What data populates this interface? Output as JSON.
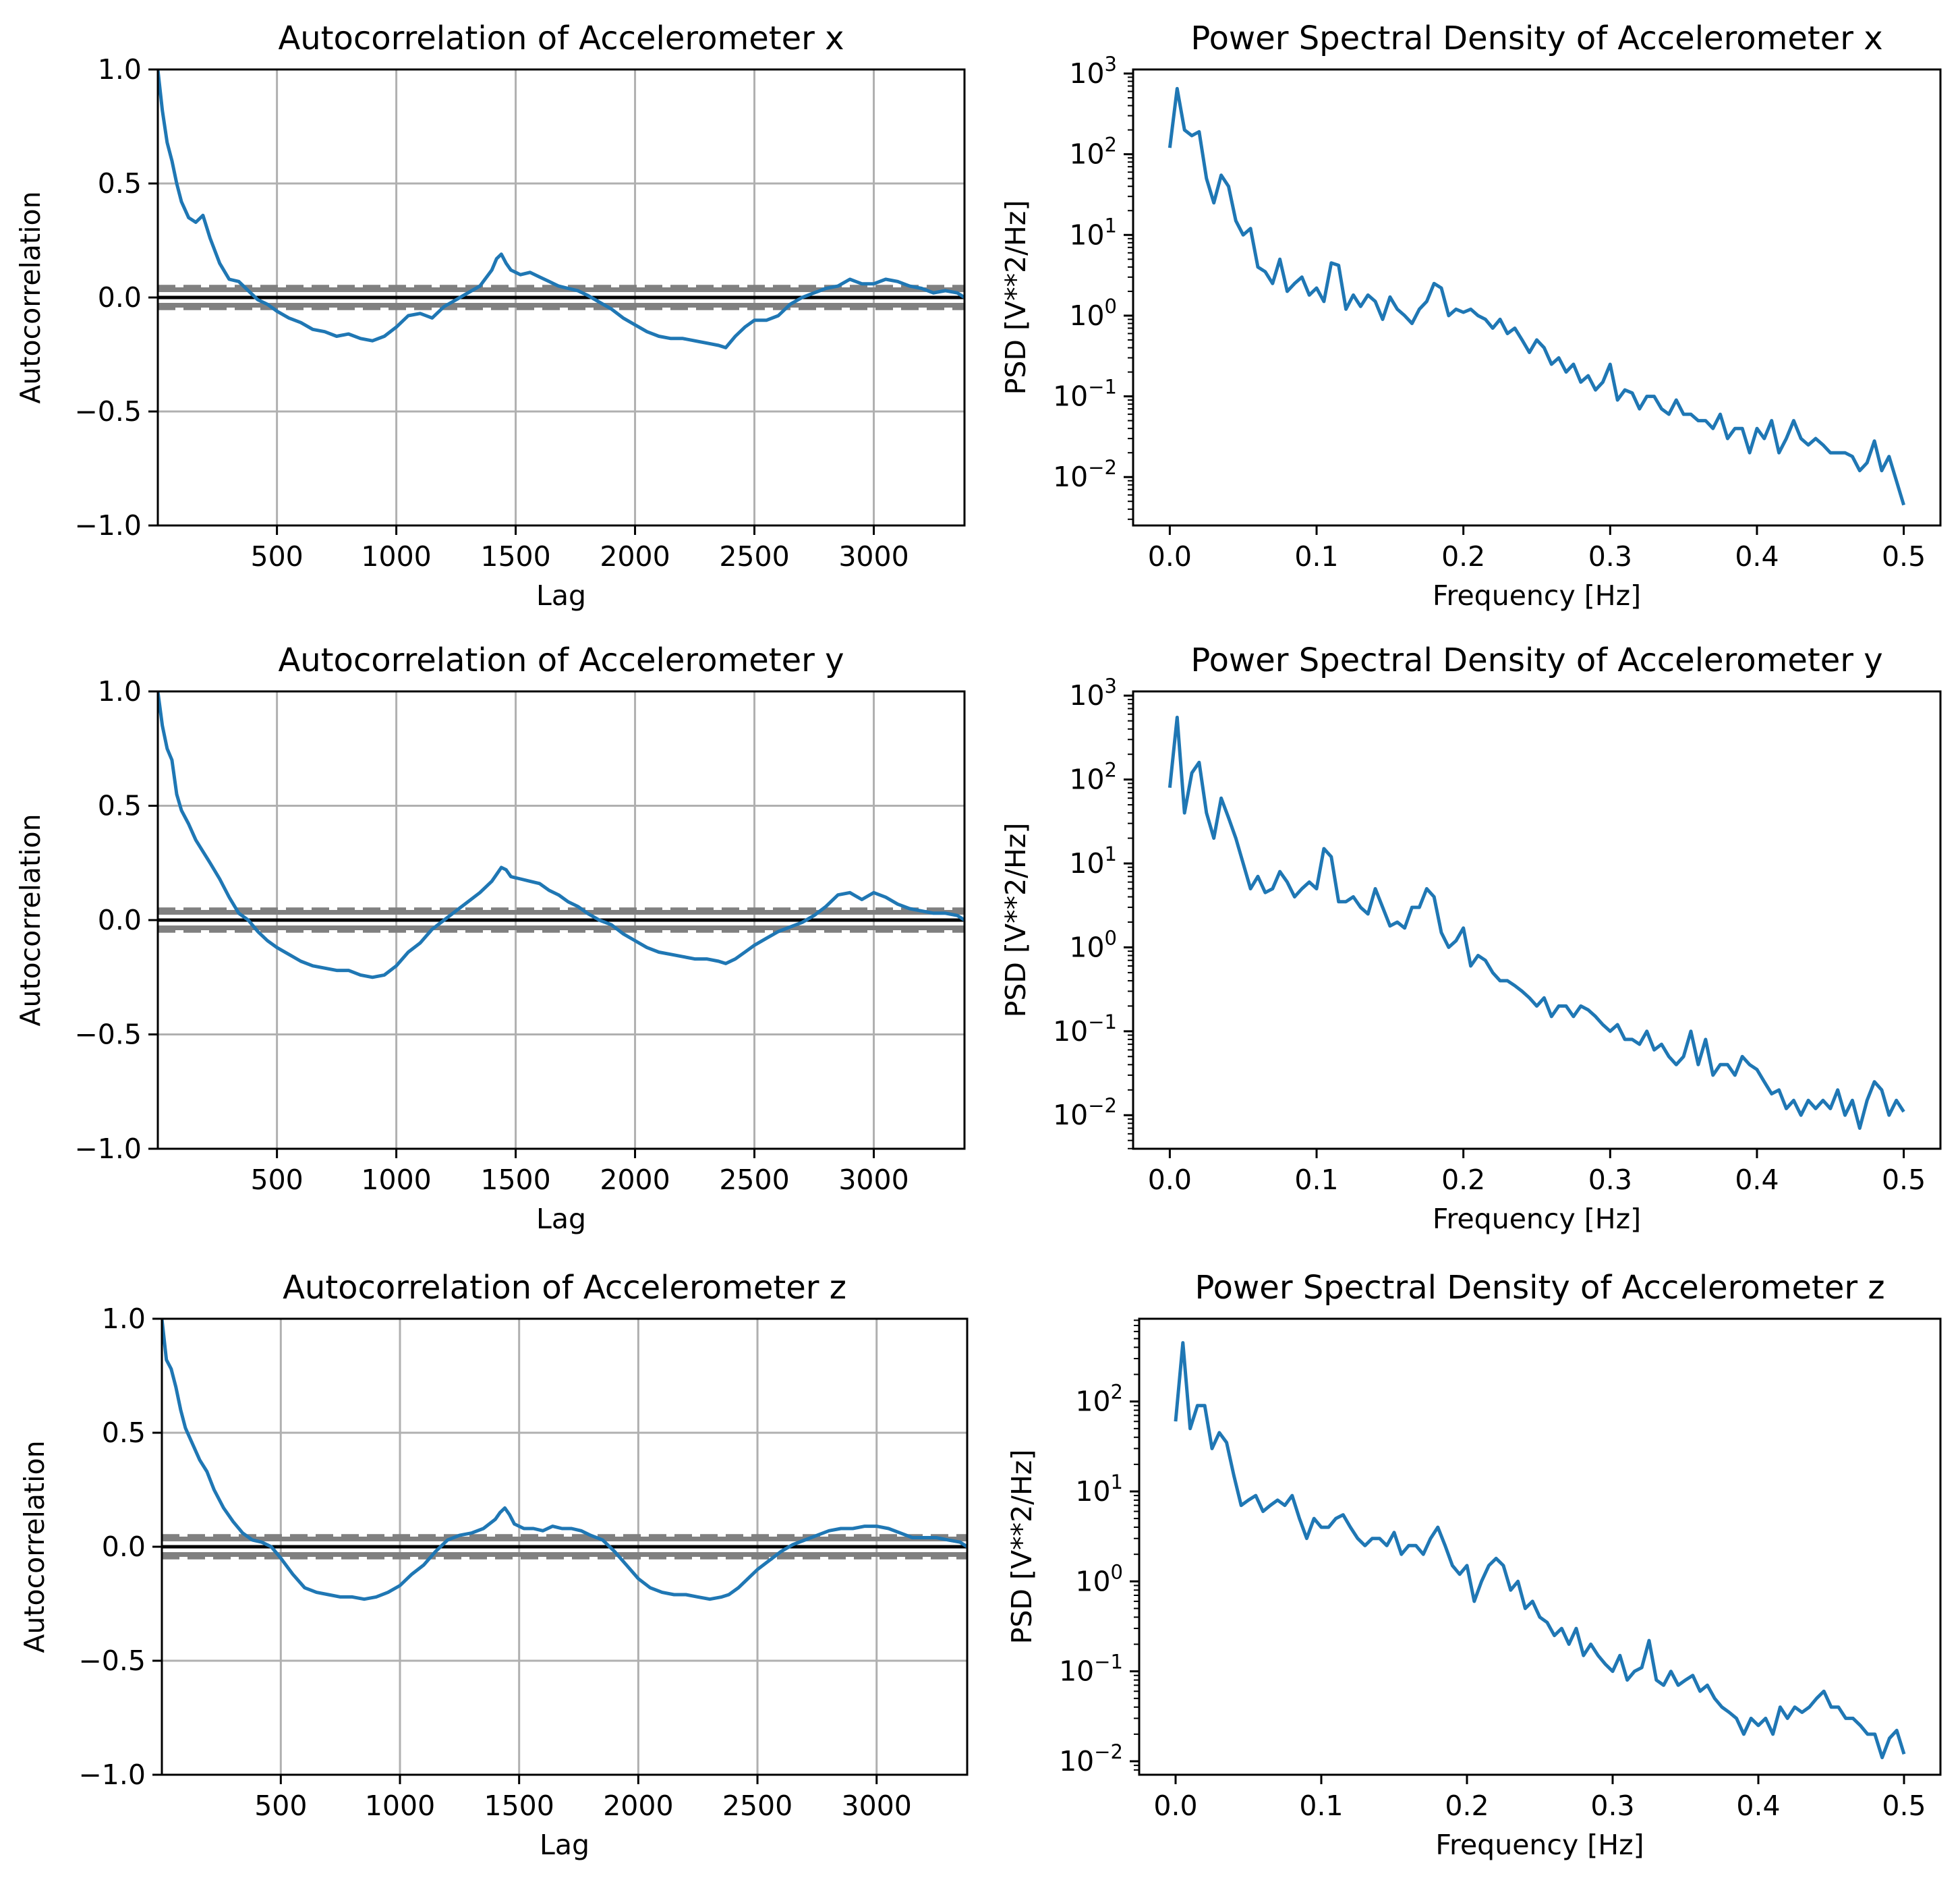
{
  "colors": {
    "line": "#1f77b4",
    "grid": "#b0b0b0",
    "band": "#808080",
    "axis": "#000000"
  },
  "chart_data": [
    {
      "type": "line",
      "panel": "acf",
      "title": "Autocorrelation of Accelerometer x",
      "xlabel": "Lag",
      "ylabel": "Autocorrelation",
      "xlim": [
        1,
        3380
      ],
      "ylim": [
        -1.0,
        1.0
      ],
      "xticks": [
        "500",
        "1000",
        "1500",
        "2000",
        "2500",
        "3000"
      ],
      "yticks": [
        "−1.0",
        "−0.5",
        "0.0",
        "0.5",
        "1.0"
      ],
      "grid": true,
      "conf_band": [
        0.034,
        0.045
      ],
      "x": [
        1,
        20,
        40,
        60,
        80,
        100,
        130,
        160,
        190,
        220,
        260,
        300,
        340,
        380,
        420,
        460,
        500,
        550,
        600,
        650,
        700,
        750,
        800,
        850,
        900,
        950,
        1000,
        1050,
        1100,
        1150,
        1200,
        1250,
        1300,
        1350,
        1400,
        1420,
        1440,
        1460,
        1480,
        1520,
        1560,
        1600,
        1640,
        1680,
        1720,
        1760,
        1800,
        1850,
        1900,
        1950,
        2000,
        2050,
        2100,
        2150,
        2200,
        2250,
        2300,
        2350,
        2380,
        2420,
        2460,
        2500,
        2550,
        2600,
        2650,
        2700,
        2750,
        2800,
        2850,
        2900,
        2950,
        3000,
        3050,
        3100,
        3150,
        3200,
        3250,
        3300,
        3350,
        3380
      ],
      "y": [
        1.0,
        0.82,
        0.68,
        0.6,
        0.5,
        0.42,
        0.35,
        0.33,
        0.36,
        0.26,
        0.15,
        0.08,
        0.07,
        0.03,
        -0.01,
        -0.03,
        -0.06,
        -0.09,
        -0.11,
        -0.14,
        -0.15,
        -0.17,
        -0.16,
        -0.18,
        -0.19,
        -0.17,
        -0.13,
        -0.08,
        -0.07,
        -0.09,
        -0.04,
        -0.01,
        0.02,
        0.05,
        0.12,
        0.17,
        0.19,
        0.15,
        0.12,
        0.1,
        0.11,
        0.09,
        0.07,
        0.05,
        0.04,
        0.03,
        0.01,
        -0.02,
        -0.05,
        -0.09,
        -0.12,
        -0.15,
        -0.17,
        -0.18,
        -0.18,
        -0.19,
        -0.2,
        -0.21,
        -0.22,
        -0.17,
        -0.13,
        -0.1,
        -0.1,
        -0.08,
        -0.03,
        0.0,
        0.02,
        0.04,
        0.05,
        0.08,
        0.06,
        0.06,
        0.08,
        0.07,
        0.05,
        0.04,
        0.02,
        0.03,
        0.02,
        0.0
      ]
    },
    {
      "type": "line",
      "panel": "psd",
      "yscale": "log",
      "title": "Power Spectral Density of Accelerometer x",
      "xlabel": "Frequency [Hz]",
      "ylabel": "PSD [V**2/Hz]",
      "xlim": [
        -0.025,
        0.525
      ],
      "ylim_log10": [
        -2.6,
        3.05
      ],
      "xticks": [
        "0.0",
        "0.1",
        "0.2",
        "0.3",
        "0.4",
        "0.5"
      ],
      "yticks": [
        -2,
        -1,
        0,
        1,
        2,
        3
      ],
      "x": [
        0.0,
        0.005,
        0.01,
        0.015,
        0.02,
        0.025,
        0.03,
        0.035,
        0.04,
        0.045,
        0.05,
        0.055,
        0.06,
        0.065,
        0.07,
        0.075,
        0.08,
        0.085,
        0.09,
        0.095,
        0.1,
        0.105,
        0.11,
        0.115,
        0.12,
        0.125,
        0.13,
        0.135,
        0.14,
        0.145,
        0.15,
        0.155,
        0.16,
        0.165,
        0.17,
        0.175,
        0.18,
        0.185,
        0.19,
        0.195,
        0.2,
        0.205,
        0.21,
        0.215,
        0.22,
        0.225,
        0.23,
        0.235,
        0.24,
        0.245,
        0.25,
        0.255,
        0.26,
        0.265,
        0.27,
        0.275,
        0.28,
        0.285,
        0.29,
        0.295,
        0.3,
        0.305,
        0.31,
        0.315,
        0.32,
        0.325,
        0.33,
        0.335,
        0.34,
        0.345,
        0.35,
        0.355,
        0.36,
        0.365,
        0.37,
        0.375,
        0.38,
        0.385,
        0.39,
        0.395,
        0.4,
        0.405,
        0.41,
        0.415,
        0.42,
        0.425,
        0.43,
        0.435,
        0.44,
        0.445,
        0.45,
        0.455,
        0.46,
        0.465,
        0.47,
        0.475,
        0.48,
        0.485,
        0.49,
        0.495,
        0.5
      ],
      "y": [
        120,
        650,
        200,
        170,
        190,
        50,
        25,
        55,
        40,
        15,
        10,
        12,
        4,
        3.5,
        2.5,
        5,
        2,
        2.5,
        3,
        1.8,
        2.2,
        1.5,
        4.5,
        4.2,
        1.2,
        1.8,
        1.3,
        1.8,
        1.5,
        0.9,
        1.7,
        1.2,
        1.0,
        0.8,
        1.2,
        1.5,
        2.5,
        2.2,
        1.0,
        1.2,
        1.1,
        1.2,
        1.0,
        0.9,
        0.7,
        0.9,
        0.6,
        0.7,
        0.5,
        0.35,
        0.5,
        0.4,
        0.25,
        0.3,
        0.2,
        0.25,
        0.15,
        0.18,
        0.12,
        0.15,
        0.25,
        0.09,
        0.12,
        0.11,
        0.07,
        0.1,
        0.1,
        0.07,
        0.06,
        0.09,
        0.06,
        0.06,
        0.05,
        0.05,
        0.04,
        0.06,
        0.03,
        0.04,
        0.04,
        0.02,
        0.04,
        0.03,
        0.05,
        0.02,
        0.03,
        0.05,
        0.03,
        0.025,
        0.03,
        0.025,
        0.02,
        0.02,
        0.02,
        0.018,
        0.012,
        0.015,
        0.028,
        0.012,
        0.018,
        0.009,
        0.0045
      ]
    },
    {
      "type": "line",
      "panel": "acf",
      "title": "Autocorrelation of Accelerometer y",
      "xlabel": "Lag",
      "ylabel": "Autocorrelation",
      "xlim": [
        1,
        3380
      ],
      "ylim": [
        -1.0,
        1.0
      ],
      "xticks": [
        "500",
        "1000",
        "1500",
        "2000",
        "2500",
        "3000"
      ],
      "yticks": [
        "−1.0",
        "−0.5",
        "0.0",
        "0.5",
        "1.0"
      ],
      "grid": true,
      "conf_band": [
        0.034,
        0.045
      ],
      "x": [
        1,
        20,
        40,
        60,
        80,
        100,
        130,
        160,
        190,
        220,
        260,
        300,
        340,
        380,
        420,
        460,
        500,
        550,
        600,
        650,
        700,
        750,
        800,
        850,
        900,
        950,
        1000,
        1050,
        1100,
        1150,
        1200,
        1250,
        1300,
        1350,
        1400,
        1420,
        1440,
        1460,
        1480,
        1520,
        1560,
        1600,
        1640,
        1680,
        1720,
        1760,
        1800,
        1850,
        1900,
        1950,
        2000,
        2050,
        2100,
        2150,
        2200,
        2250,
        2300,
        2350,
        2380,
        2420,
        2460,
        2500,
        2550,
        2600,
        2650,
        2700,
        2750,
        2800,
        2850,
        2900,
        2950,
        3000,
        3050,
        3100,
        3150,
        3200,
        3250,
        3300,
        3350,
        3380
      ],
      "y": [
        1.0,
        0.85,
        0.75,
        0.7,
        0.55,
        0.48,
        0.42,
        0.35,
        0.3,
        0.25,
        0.18,
        0.1,
        0.03,
        0.0,
        -0.05,
        -0.09,
        -0.12,
        -0.15,
        -0.18,
        -0.2,
        -0.21,
        -0.22,
        -0.22,
        -0.24,
        -0.25,
        -0.24,
        -0.2,
        -0.14,
        -0.1,
        -0.04,
        0.0,
        0.04,
        0.08,
        0.12,
        0.17,
        0.2,
        0.23,
        0.22,
        0.19,
        0.18,
        0.17,
        0.16,
        0.13,
        0.11,
        0.08,
        0.06,
        0.03,
        0.0,
        -0.02,
        -0.06,
        -0.09,
        -0.12,
        -0.14,
        -0.15,
        -0.16,
        -0.17,
        -0.17,
        -0.18,
        -0.19,
        -0.17,
        -0.14,
        -0.11,
        -0.08,
        -0.05,
        -0.03,
        -0.01,
        0.02,
        0.06,
        0.11,
        0.12,
        0.09,
        0.12,
        0.1,
        0.07,
        0.05,
        0.04,
        0.03,
        0.03,
        0.02,
        0.0
      ]
    },
    {
      "type": "line",
      "panel": "psd",
      "yscale": "log",
      "title": "Power Spectral Density of Accelerometer y",
      "xlabel": "Frequency [Hz]",
      "ylabel": "PSD [V**2/Hz]",
      "xlim": [
        -0.025,
        0.525
      ],
      "ylim_log10": [
        -2.4,
        3.05
      ],
      "xticks": [
        "0.0",
        "0.1",
        "0.2",
        "0.3",
        "0.4",
        "0.5"
      ],
      "yticks": [
        -2,
        -1,
        0,
        1,
        2,
        3
      ],
      "x": [
        0.0,
        0.005,
        0.01,
        0.015,
        0.02,
        0.025,
        0.03,
        0.035,
        0.04,
        0.045,
        0.05,
        0.055,
        0.06,
        0.065,
        0.07,
        0.075,
        0.08,
        0.085,
        0.09,
        0.095,
        0.1,
        0.105,
        0.11,
        0.115,
        0.12,
        0.125,
        0.13,
        0.135,
        0.14,
        0.145,
        0.15,
        0.155,
        0.16,
        0.165,
        0.17,
        0.175,
        0.18,
        0.185,
        0.19,
        0.195,
        0.2,
        0.205,
        0.21,
        0.215,
        0.22,
        0.225,
        0.23,
        0.235,
        0.24,
        0.245,
        0.25,
        0.255,
        0.26,
        0.265,
        0.27,
        0.275,
        0.28,
        0.285,
        0.29,
        0.295,
        0.3,
        0.305,
        0.31,
        0.315,
        0.32,
        0.325,
        0.33,
        0.335,
        0.34,
        0.345,
        0.35,
        0.355,
        0.36,
        0.365,
        0.37,
        0.375,
        0.38,
        0.385,
        0.39,
        0.395,
        0.4,
        0.405,
        0.41,
        0.415,
        0.42,
        0.425,
        0.43,
        0.435,
        0.44,
        0.445,
        0.45,
        0.455,
        0.46,
        0.465,
        0.47,
        0.475,
        0.48,
        0.485,
        0.49,
        0.495,
        0.5
      ],
      "y": [
        80,
        550,
        40,
        120,
        160,
        40,
        20,
        60,
        35,
        20,
        10,
        5,
        7,
        4.5,
        5,
        8,
        6,
        4,
        5,
        6,
        5,
        15,
        12,
        3.5,
        3.5,
        4,
        3,
        2.5,
        5,
        3,
        1.8,
        2,
        1.7,
        3,
        3,
        5,
        4,
        1.5,
        1.0,
        1.2,
        1.7,
        0.6,
        0.8,
        0.7,
        0.5,
        0.4,
        0.4,
        0.35,
        0.3,
        0.25,
        0.2,
        0.25,
        0.15,
        0.2,
        0.2,
        0.15,
        0.2,
        0.18,
        0.15,
        0.12,
        0.1,
        0.12,
        0.08,
        0.08,
        0.07,
        0.1,
        0.06,
        0.07,
        0.05,
        0.04,
        0.05,
        0.1,
        0.04,
        0.08,
        0.03,
        0.04,
        0.04,
        0.03,
        0.05,
        0.04,
        0.035,
        0.025,
        0.018,
        0.02,
        0.012,
        0.015,
        0.01,
        0.015,
        0.012,
        0.015,
        0.012,
        0.02,
        0.01,
        0.015,
        0.007,
        0.015,
        0.025,
        0.02,
        0.01,
        0.015,
        0.011
      ]
    },
    {
      "type": "line",
      "panel": "acf",
      "title": "Autocorrelation of Accelerometer z",
      "xlabel": "Lag",
      "ylabel": "Autocorrelation",
      "xlim": [
        1,
        3380
      ],
      "ylim": [
        -1.0,
        1.0
      ],
      "xticks": [
        "500",
        "1000",
        "1500",
        "2000",
        "2500",
        "3000"
      ],
      "yticks": [
        "−1.0",
        "−0.5",
        "0.0",
        "0.5",
        "1.0"
      ],
      "grid": true,
      "conf_band": [
        0.034,
        0.045
      ],
      "x": [
        1,
        20,
        40,
        60,
        80,
        100,
        130,
        160,
        190,
        220,
        260,
        300,
        340,
        380,
        420,
        460,
        500,
        550,
        600,
        650,
        700,
        750,
        800,
        850,
        900,
        950,
        1000,
        1050,
        1100,
        1150,
        1200,
        1250,
        1300,
        1350,
        1400,
        1420,
        1440,
        1460,
        1480,
        1520,
        1560,
        1600,
        1640,
        1680,
        1720,
        1760,
        1800,
        1850,
        1900,
        1950,
        2000,
        2050,
        2100,
        2150,
        2200,
        2250,
        2300,
        2350,
        2380,
        2420,
        2460,
        2500,
        2550,
        2600,
        2650,
        2700,
        2750,
        2800,
        2850,
        2900,
        2950,
        3000,
        3050,
        3100,
        3150,
        3200,
        3250,
        3300,
        3350,
        3380
      ],
      "y": [
        1.0,
        0.82,
        0.78,
        0.7,
        0.6,
        0.52,
        0.45,
        0.38,
        0.33,
        0.25,
        0.17,
        0.11,
        0.06,
        0.03,
        0.02,
        0.0,
        -0.05,
        -0.12,
        -0.18,
        -0.2,
        -0.21,
        -0.22,
        -0.22,
        -0.23,
        -0.22,
        -0.2,
        -0.17,
        -0.12,
        -0.08,
        -0.02,
        0.03,
        0.05,
        0.06,
        0.08,
        0.12,
        0.15,
        0.17,
        0.14,
        0.1,
        0.08,
        0.08,
        0.07,
        0.09,
        0.08,
        0.08,
        0.07,
        0.05,
        0.03,
        -0.02,
        -0.08,
        -0.14,
        -0.18,
        -0.2,
        -0.21,
        -0.21,
        -0.22,
        -0.23,
        -0.22,
        -0.21,
        -0.18,
        -0.14,
        -0.1,
        -0.06,
        -0.02,
        0.01,
        0.03,
        0.05,
        0.07,
        0.08,
        0.08,
        0.09,
        0.09,
        0.08,
        0.06,
        0.04,
        0.04,
        0.04,
        0.03,
        0.02,
        0.0
      ]
    },
    {
      "type": "line",
      "panel": "psd",
      "yscale": "log",
      "title": "Power Spectral Density of Accelerometer z",
      "xlabel": "Frequency [Hz]",
      "ylabel": "PSD [V**2/Hz]",
      "xlim": [
        -0.025,
        0.525
      ],
      "ylim_log10": [
        -2.15,
        2.92
      ],
      "xticks": [
        "0.0",
        "0.1",
        "0.2",
        "0.3",
        "0.4",
        "0.5"
      ],
      "yticks": [
        -2,
        -1,
        0,
        1,
        2
      ],
      "x": [
        0.0,
        0.005,
        0.01,
        0.015,
        0.02,
        0.025,
        0.03,
        0.035,
        0.04,
        0.045,
        0.05,
        0.055,
        0.06,
        0.065,
        0.07,
        0.075,
        0.08,
        0.085,
        0.09,
        0.095,
        0.1,
        0.105,
        0.11,
        0.115,
        0.12,
        0.125,
        0.13,
        0.135,
        0.14,
        0.145,
        0.15,
        0.155,
        0.16,
        0.165,
        0.17,
        0.175,
        0.18,
        0.185,
        0.19,
        0.195,
        0.2,
        0.205,
        0.21,
        0.215,
        0.22,
        0.225,
        0.23,
        0.235,
        0.24,
        0.245,
        0.25,
        0.255,
        0.26,
        0.265,
        0.27,
        0.275,
        0.28,
        0.285,
        0.29,
        0.295,
        0.3,
        0.305,
        0.31,
        0.315,
        0.32,
        0.325,
        0.33,
        0.335,
        0.34,
        0.345,
        0.35,
        0.355,
        0.36,
        0.365,
        0.37,
        0.375,
        0.38,
        0.385,
        0.39,
        0.395,
        0.4,
        0.405,
        0.41,
        0.415,
        0.42,
        0.425,
        0.43,
        0.435,
        0.44,
        0.445,
        0.45,
        0.455,
        0.46,
        0.465,
        0.47,
        0.475,
        0.48,
        0.485,
        0.49,
        0.495,
        0.5
      ],
      "y": [
        60,
        450,
        50,
        90,
        90,
        30,
        45,
        35,
        15,
        7,
        8,
        9,
        6,
        7,
        8,
        7,
        9,
        5,
        3,
        5,
        4,
        4,
        5,
        5.5,
        4,
        3,
        2.5,
        3,
        3,
        2.5,
        3.5,
        2,
        2.5,
        2.5,
        2,
        3,
        4,
        2.5,
        1.5,
        1.2,
        1.5,
        0.6,
        1.0,
        1.5,
        1.8,
        1.5,
        0.8,
        1.0,
        0.5,
        0.6,
        0.4,
        0.35,
        0.25,
        0.3,
        0.2,
        0.3,
        0.15,
        0.2,
        0.15,
        0.12,
        0.1,
        0.15,
        0.08,
        0.1,
        0.11,
        0.22,
        0.08,
        0.07,
        0.1,
        0.07,
        0.08,
        0.09,
        0.06,
        0.07,
        0.05,
        0.04,
        0.035,
        0.03,
        0.02,
        0.03,
        0.025,
        0.03,
        0.02,
        0.04,
        0.03,
        0.04,
        0.035,
        0.04,
        0.05,
        0.06,
        0.04,
        0.04,
        0.03,
        0.03,
        0.025,
        0.02,
        0.02,
        0.011,
        0.018,
        0.022,
        0.012
      ]
    }
  ]
}
